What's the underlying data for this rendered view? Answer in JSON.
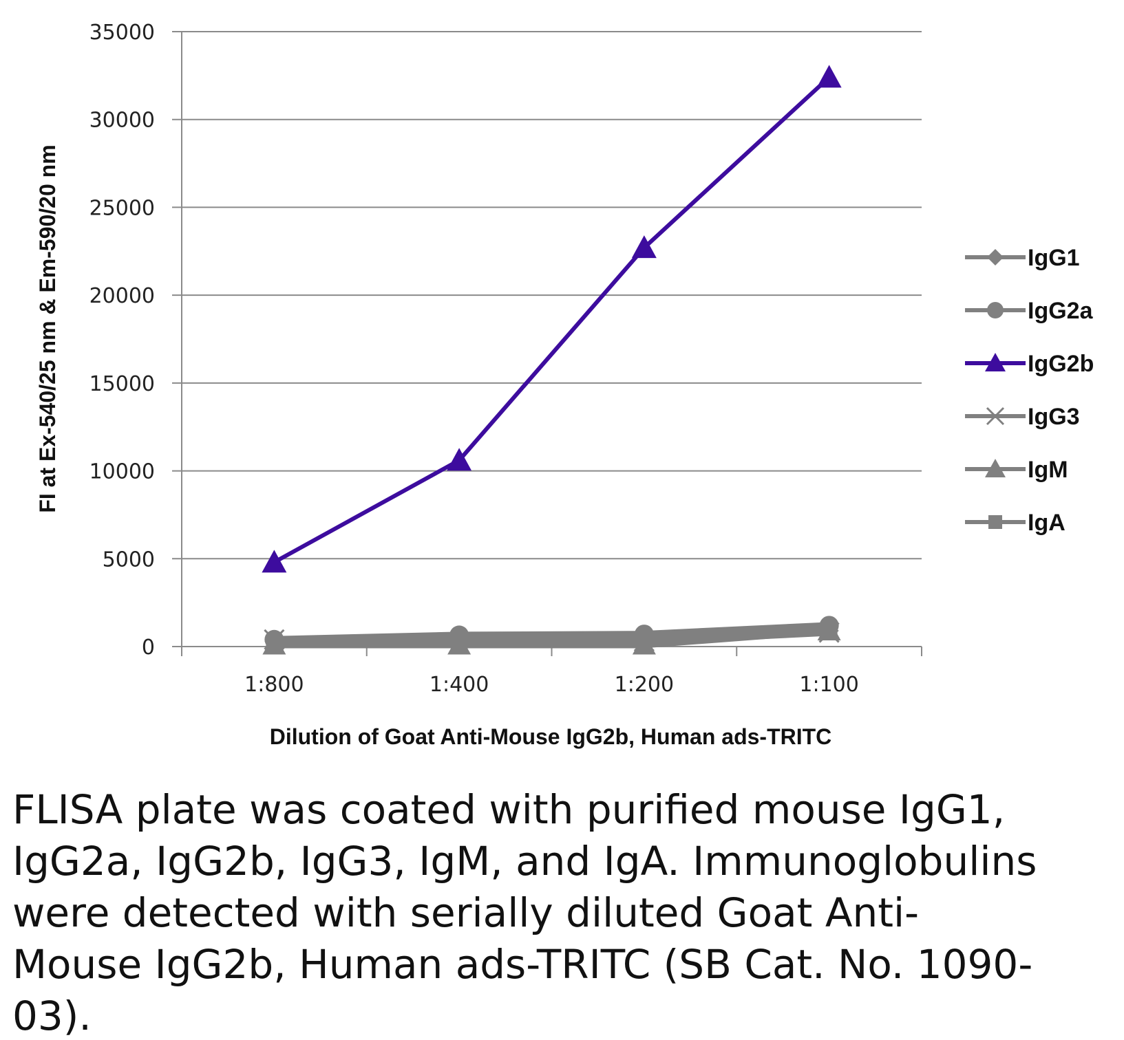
{
  "chart_data": {
    "type": "line",
    "title": "",
    "xlabel": "Dilution of Goat Anti-Mouse IgG2b, Human ads-TRITC",
    "ylabel": "FI at Ex-540/25 nm & Em-590/20 nm",
    "categories": [
      "1:800",
      "1:400",
      "1:200",
      "1:100"
    ],
    "ylim": [
      0,
      35000
    ],
    "yticks": [
      0,
      5000,
      10000,
      15000,
      20000,
      25000,
      30000,
      35000
    ],
    "grid": true,
    "legend_position": "right",
    "series": [
      {
        "name": "IgG1",
        "marker": "diamond",
        "color": "#808080",
        "values": [
          300,
          400,
          500,
          900
        ]
      },
      {
        "name": "IgG2a",
        "marker": "circle",
        "color": "#808080",
        "values": [
          400,
          650,
          700,
          1200
        ]
      },
      {
        "name": "IgG2b",
        "marker": "triangle",
        "color": "#3d0c9e",
        "values": [
          4800,
          10600,
          22700,
          32400
        ]
      },
      {
        "name": "IgG3",
        "marker": "x",
        "color": "#808080",
        "values": [
          400,
          200,
          300,
          800
        ]
      },
      {
        "name": "IgM",
        "marker": "triangle",
        "color": "#808080",
        "values": [
          100,
          100,
          100,
          900
        ]
      },
      {
        "name": "IgA",
        "marker": "square",
        "color": "#808080",
        "values": [
          200,
          250,
          300,
          900
        ]
      }
    ]
  },
  "caption": "FLISA plate was coated with purified mouse IgG1, IgG2a, IgG2b, IgG3, IgM, and IgA. Immunoglobulins were detected with serially diluted Goat Anti-Mouse IgG2b, Human ads-TRITC (SB Cat. No. 1090-03)."
}
